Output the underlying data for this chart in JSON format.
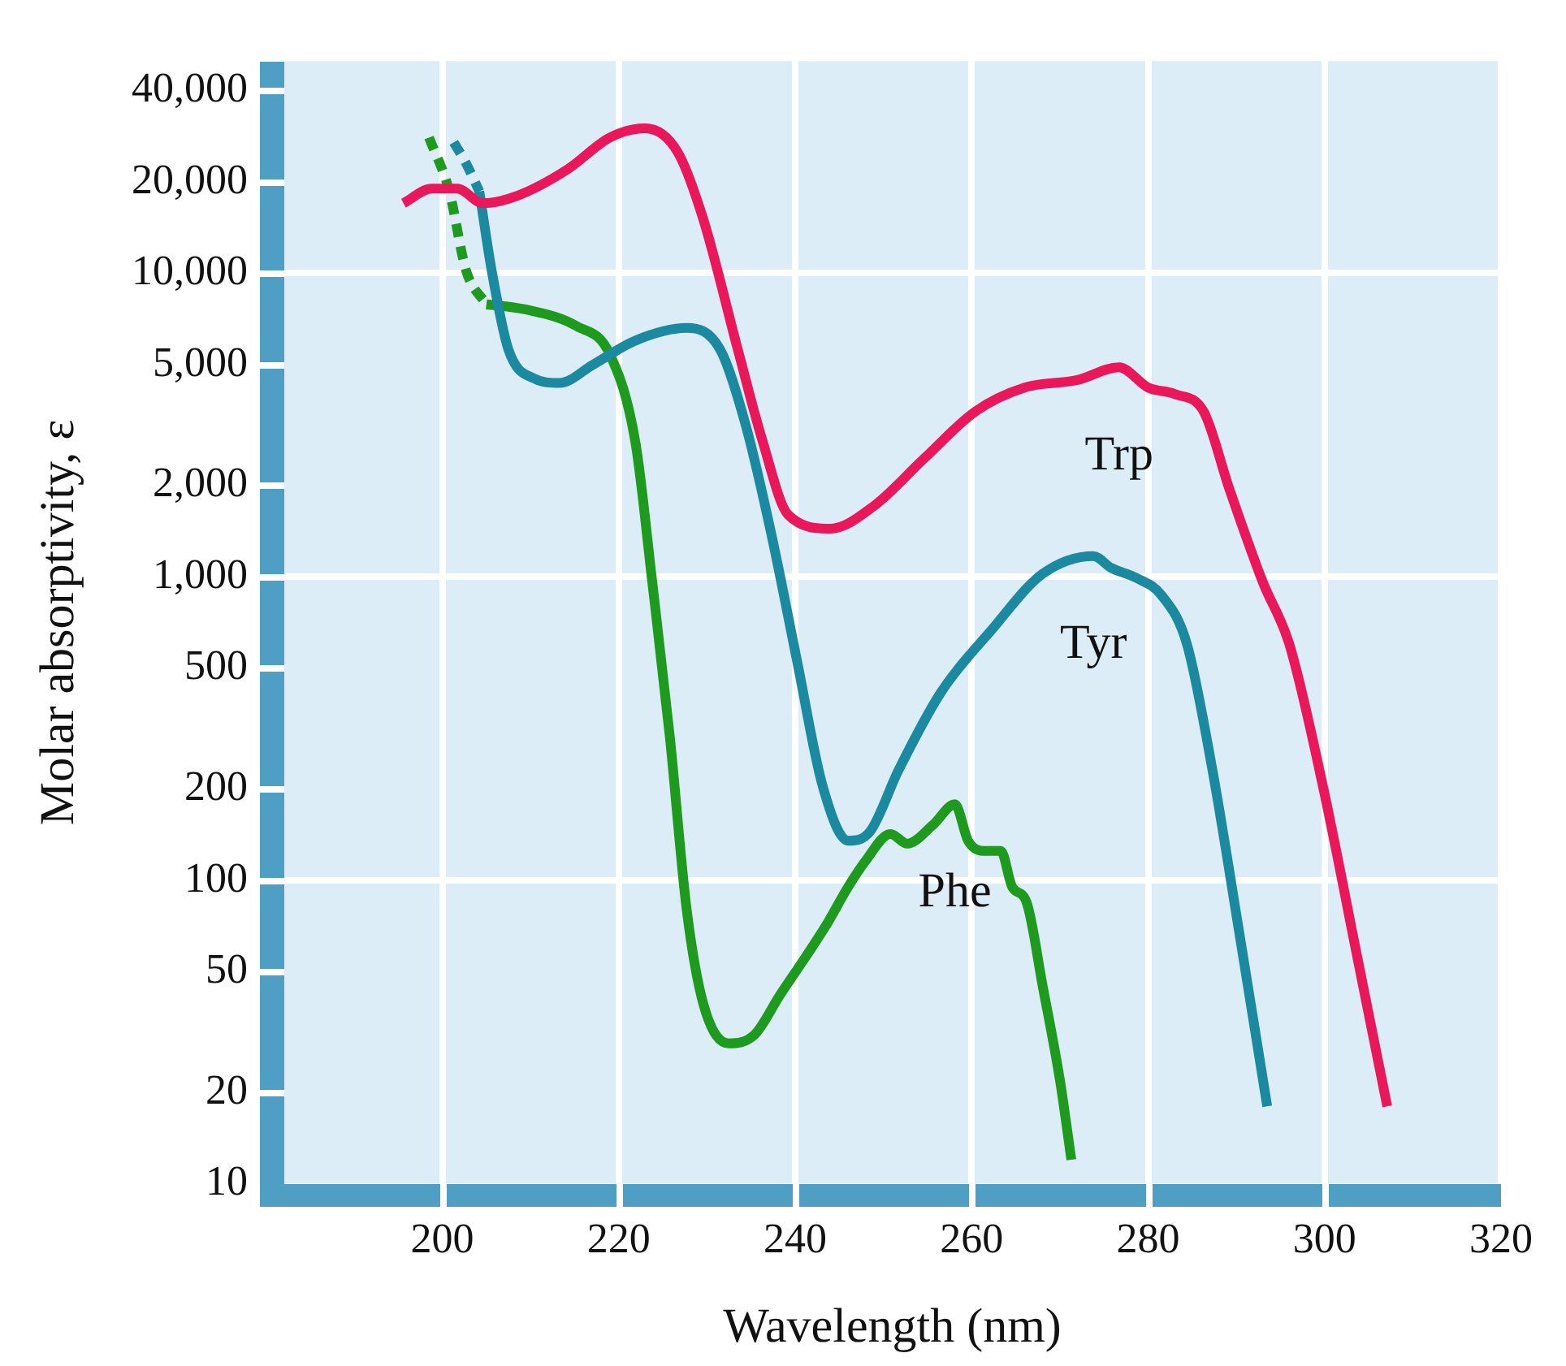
{
  "chart_data": {
    "type": "line",
    "xlabel": "Wavelength (nm)",
    "ylabel": "Molar absorptivity, ε",
    "log": "y",
    "grid": true,
    "marker": "none",
    "line_style": "solid",
    "xlim": [
      182,
      320
    ],
    "xticks": [
      200,
      220,
      240,
      260,
      280,
      300,
      320
    ],
    "ylim": [
      10,
      50000
    ],
    "yticks": [
      10,
      20,
      50,
      100,
      200,
      500,
      {
        "value": 1000,
        "label": "1,000"
      },
      {
        "value": 2000,
        "label": "2,000"
      },
      {
        "value": 5000,
        "label": "5,000"
      },
      {
        "value": 10000,
        "label": "10,000"
      },
      {
        "value": 20000,
        "label": "20,000"
      },
      {
        "value": 40000,
        "label": "40,000"
      }
    ],
    "series": [
      {
        "name": "Trp",
        "color": "#e8185a",
        "x": [
          195.6,
          198.8,
          201.7,
          204.6,
          208.5,
          214.2,
          219,
          223,
          226.7,
          229.6,
          233.5,
          236.3,
          239.2,
          244,
          248.8,
          254.6,
          260.4,
          266,
          272,
          276.7,
          280,
          283,
          286.3,
          289.2,
          293,
          296,
          299.8,
          303.7,
          307.1
        ],
        "values": [
          17000,
          19000,
          19000,
          17000,
          18000,
          22000,
          28000,
          30000,
          25000,
          15000,
          5600,
          2800,
          1600,
          1440,
          1700,
          2450,
          3500,
          4200,
          4450,
          4900,
          4200,
          4000,
          3500,
          1950,
          960,
          600,
          205,
          56,
          18
        ]
      },
      {
        "color": "#1b8aa0",
        "line_style": "dashed",
        "x": [
          201.3,
          202.7,
          204.2
        ],
        "values": [
          27000,
          23000,
          18600
        ]
      },
      {
        "name": "Tyr",
        "color": "#1b8aa0",
        "x": [
          204.2,
          205.6,
          207.5,
          210.4,
          213.3,
          217.1,
          221.9,
          227.7,
          231.5,
          234.4,
          237.3,
          240.2,
          243.1,
          246,
          248.5,
          251.7,
          256.5,
          262.3,
          268,
          273.8,
          275.8,
          278.7,
          281.5,
          284.4,
          287.3,
          290.2,
          293.5
        ],
        "values": [
          18600,
          10200,
          5600,
          4500,
          4350,
          5000,
          6000,
          6600,
          5600,
          3150,
          1380,
          530,
          205,
          135,
          145,
          230,
          415,
          670,
          1020,
          1170,
          1070,
          990,
          870,
          600,
          230,
          71,
          18
        ]
      },
      {
        "color": "#1e9a1e",
        "line_style": "dashed",
        "x": [
          198.5,
          200.8,
          202.7,
          205
        ],
        "values": [
          28000,
          18600,
          10200,
          7900
        ]
      },
      {
        "name": "Phe",
        "color": "#1e9a1e",
        "x": [
          205,
          209.4,
          215.2,
          219,
          221.9,
          223.8,
          225.8,
          227.7,
          229.6,
          232.5,
          235.4,
          238.3,
          241.2,
          243.5,
          246,
          247.9,
          250.8,
          252.7,
          255.6,
          258.1,
          259.6,
          261.3,
          263.3,
          264.6,
          266.2,
          268.1,
          270,
          271.3
        ],
        "values": [
          7900,
          7600,
          6700,
          5400,
          2760,
          960,
          295,
          80,
          39,
          29,
          31,
          42,
          56,
          71,
          95,
          115,
          142,
          132,
          152,
          178,
          135,
          125,
          125,
          95,
          85,
          44,
          22,
          12
        ]
      }
    ]
  }
}
